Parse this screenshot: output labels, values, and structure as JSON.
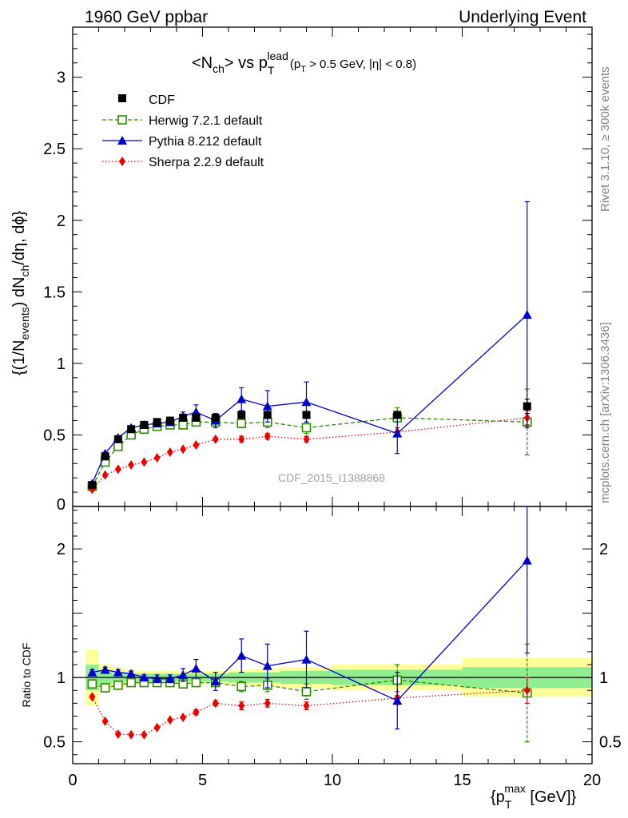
{
  "header": {
    "left": "1960 GeV ppbar",
    "right": "Underlying Event"
  },
  "side_labels": {
    "upper": "Rivet 3.1.10, ≥ 300k events",
    "lower": "mcplots.cern.ch [arXiv:1306.3436]"
  },
  "watermark": "CDF_2015_I1388868",
  "chart_data": [
    {
      "type": "scatter",
      "panel": "main",
      "title_parts": {
        "base": "<N",
        "ch_sub": "ch",
        "mid": "> vs p",
        "lead_sup": "lead",
        "T_sub": "T",
        "cut_a": "(p",
        "cut_T": "T",
        "cut_b": " > 0.5 GeV, |η| < 0.8)"
      },
      "ylabel_parts": {
        "a": "{(1/N",
        "events_sub": "events",
        "b": ") dN",
        "ch_sub": "ch",
        "c": "/dη, dϕ}"
      },
      "xlim": [
        0,
        20
      ],
      "ylim": [
        0,
        3.35
      ],
      "x_ticks": [
        "0",
        "5",
        "10",
        "15",
        "20"
      ],
      "y_ticks": [
        {
          "v": 0.5,
          "label": "0.5"
        },
        {
          "v": 1,
          "label": "1"
        },
        {
          "v": 1.5,
          "label": "1.5"
        },
        {
          "v": 2,
          "label": "2"
        },
        {
          "v": 2.5,
          "label": "2.5"
        },
        {
          "v": 3,
          "label": "3"
        }
      ],
      "y_zero_label": "0",
      "legend_position": "top-left",
      "series": [
        {
          "name": "CDF",
          "style": "data",
          "color": "#000000",
          "x": [
            0.75,
            1.25,
            1.75,
            2.25,
            2.75,
            3.25,
            3.75,
            4.25,
            4.75,
            5.5,
            6.5,
            7.5,
            9.0,
            12.5,
            17.5
          ],
          "y": [
            0.15,
            0.35,
            0.47,
            0.54,
            0.57,
            0.59,
            0.6,
            0.62,
            0.62,
            0.62,
            0.64,
            0.64,
            0.64,
            0.64,
            0.7
          ],
          "err": [
            0.01,
            0.01,
            0.01,
            0.01,
            0.01,
            0.01,
            0.01,
            0.01,
            0.01,
            0.01,
            0.01,
            0.01,
            0.01,
            0.02,
            0.05
          ]
        },
        {
          "name": "Herwig 7.2.1 default",
          "style": "herwig",
          "color": "#2d8a00",
          "x": [
            0.75,
            1.25,
            1.75,
            2.25,
            2.75,
            3.25,
            3.75,
            4.25,
            4.75,
            5.5,
            6.5,
            7.5,
            9.0,
            12.5,
            17.5
          ],
          "y": [
            0.14,
            0.31,
            0.42,
            0.5,
            0.54,
            0.56,
            0.57,
            0.57,
            0.59,
            0.59,
            0.58,
            0.59,
            0.55,
            0.62,
            0.59
          ],
          "err": [
            0.01,
            0.01,
            0.01,
            0.01,
            0.01,
            0.01,
            0.01,
            0.01,
            0.02,
            0.02,
            0.03,
            0.04,
            0.04,
            0.07,
            0.23
          ]
        },
        {
          "name": "Pythia 8.212 default",
          "style": "pythia",
          "color": "#0000cc",
          "x": [
            0.75,
            1.25,
            1.75,
            2.25,
            2.75,
            3.25,
            3.75,
            4.25,
            4.75,
            5.5,
            6.5,
            7.5,
            9.0,
            12.5,
            17.5
          ],
          "y": [
            0.16,
            0.37,
            0.48,
            0.55,
            0.57,
            0.58,
            0.59,
            0.63,
            0.66,
            0.6,
            0.75,
            0.7,
            0.73,
            0.51,
            1.34
          ],
          "err": [
            0.01,
            0.01,
            0.01,
            0.01,
            0.01,
            0.02,
            0.02,
            0.03,
            0.05,
            0.05,
            0.08,
            0.11,
            0.14,
            0.14,
            0.79
          ]
        },
        {
          "name": "Sherpa 2.2.9 default",
          "style": "sherpa",
          "color": "#ee0000",
          "x": [
            0.75,
            1.25,
            1.75,
            2.25,
            2.75,
            3.25,
            3.75,
            4.25,
            4.75,
            5.5,
            6.5,
            7.5,
            9.0,
            12.5,
            17.5
          ],
          "y": [
            0.12,
            0.22,
            0.26,
            0.29,
            0.31,
            0.34,
            0.38,
            0.4,
            0.43,
            0.47,
            0.47,
            0.49,
            0.47,
            0.52,
            0.62
          ],
          "err": [
            0.005,
            0.005,
            0.005,
            0.005,
            0.005,
            0.005,
            0.005,
            0.005,
            0.01,
            0.01,
            0.02,
            0.02,
            0.02,
            0.03,
            0.05
          ]
        }
      ]
    },
    {
      "type": "scatter",
      "panel": "ratio",
      "ylabel": "Ratio to CDF",
      "xlabel_parts": {
        "a": "{p",
        "max_sup": "max",
        "T_sub": "T",
        "b": " [GeV]}"
      },
      "xlim": [
        0,
        20
      ],
      "ylim": [
        0.33,
        2.33
      ],
      "x_ticks": [
        {
          "v": 0,
          "label": "0"
        },
        {
          "v": 5,
          "label": "5"
        },
        {
          "v": 10,
          "label": "10"
        },
        {
          "v": 15,
          "label": "15"
        },
        {
          "v": 20,
          "label": "20"
        }
      ],
      "y_ticks": [
        {
          "v": 0.5,
          "label": "0.5"
        },
        {
          "v": 1,
          "label": "1"
        },
        {
          "v": 2,
          "label": "2"
        }
      ],
      "reference_line": 1,
      "uncertainty_bands": [
        {
          "x0": 0.5,
          "x1": 1.0,
          "inner": 0.1,
          "outer": 0.22
        },
        {
          "x0": 1.0,
          "x1": 1.5,
          "inner": 0.05,
          "outer": 0.1
        },
        {
          "x0": 1.5,
          "x1": 2.0,
          "inner": 0.04,
          "outer": 0.08
        },
        {
          "x0": 2.0,
          "x1": 2.5,
          "inner": 0.03,
          "outer": 0.06
        },
        {
          "x0": 2.5,
          "x1": 3.0,
          "inner": 0.03,
          "outer": 0.05
        },
        {
          "x0": 3.0,
          "x1": 3.5,
          "inner": 0.03,
          "outer": 0.05
        },
        {
          "x0": 3.5,
          "x1": 4.0,
          "inner": 0.03,
          "outer": 0.05
        },
        {
          "x0": 4.0,
          "x1": 4.5,
          "inner": 0.03,
          "outer": 0.05
        },
        {
          "x0": 4.5,
          "x1": 5.0,
          "inner": 0.03,
          "outer": 0.05
        },
        {
          "x0": 5.0,
          "x1": 6.0,
          "inner": 0.03,
          "outer": 0.05
        },
        {
          "x0": 6.0,
          "x1": 7.0,
          "inner": 0.04,
          "outer": 0.06
        },
        {
          "x0": 7.0,
          "x1": 8.0,
          "inner": 0.04,
          "outer": 0.07
        },
        {
          "x0": 8.0,
          "x1": 10.0,
          "inner": 0.05,
          "outer": 0.08
        },
        {
          "x0": 10.0,
          "x1": 15.0,
          "inner": 0.06,
          "outer": 0.1
        },
        {
          "x0": 15.0,
          "x1": 20.0,
          "inner": 0.08,
          "outer": 0.15
        }
      ],
      "band_colors": {
        "inner": "#90ee90",
        "outer": "#ffff99"
      },
      "series": [
        {
          "name": "Herwig 7.2.1 default",
          "style": "herwig",
          "color": "#2d8a00",
          "x": [
            0.75,
            1.25,
            1.75,
            2.25,
            2.75,
            3.25,
            3.75,
            4.25,
            4.75,
            5.5,
            6.5,
            7.5,
            9.0,
            12.5,
            17.5
          ],
          "y": [
            0.95,
            0.92,
            0.94,
            0.96,
            0.96,
            0.96,
            0.96,
            0.95,
            0.96,
            0.96,
            0.93,
            0.94,
            0.89,
            0.98,
            0.88
          ],
          "err": [
            0.01,
            0.02,
            0.02,
            0.01,
            0.01,
            0.01,
            0.02,
            0.02,
            0.02,
            0.03,
            0.04,
            0.05,
            0.06,
            0.12,
            0.38
          ]
        },
        {
          "name": "Pythia 8.212 default",
          "style": "pythia",
          "color": "#0000cc",
          "x": [
            0.75,
            1.25,
            1.75,
            2.25,
            2.75,
            3.25,
            3.75,
            4.25,
            4.75,
            5.5,
            6.5,
            7.5,
            9.0,
            12.5,
            17.5
          ],
          "y": [
            1.04,
            1.06,
            1.04,
            1.03,
            1.0,
            0.99,
            0.99,
            1.02,
            1.07,
            0.97,
            1.17,
            1.09,
            1.14,
            0.82,
            1.91
          ],
          "err": [
            0.02,
            0.02,
            0.02,
            0.02,
            0.02,
            0.03,
            0.03,
            0.05,
            0.07,
            0.07,
            0.13,
            0.17,
            0.22,
            0.22,
            0.72
          ]
        },
        {
          "name": "Sherpa 2.2.9 default",
          "style": "sherpa",
          "color": "#ee0000",
          "x": [
            0.75,
            1.25,
            1.75,
            2.25,
            2.75,
            3.25,
            3.75,
            4.25,
            4.75,
            5.5,
            6.5,
            7.5,
            9.0,
            12.5,
            17.5
          ],
          "y": [
            0.85,
            0.66,
            0.56,
            0.555,
            0.555,
            0.61,
            0.67,
            0.69,
            0.73,
            0.8,
            0.78,
            0.8,
            0.78,
            0.84,
            0.9
          ],
          "err": [
            0.01,
            0.01,
            0.01,
            0.01,
            0.01,
            0.01,
            0.01,
            0.01,
            0.02,
            0.02,
            0.03,
            0.03,
            0.03,
            0.05,
            0.1
          ]
        }
      ]
    }
  ]
}
